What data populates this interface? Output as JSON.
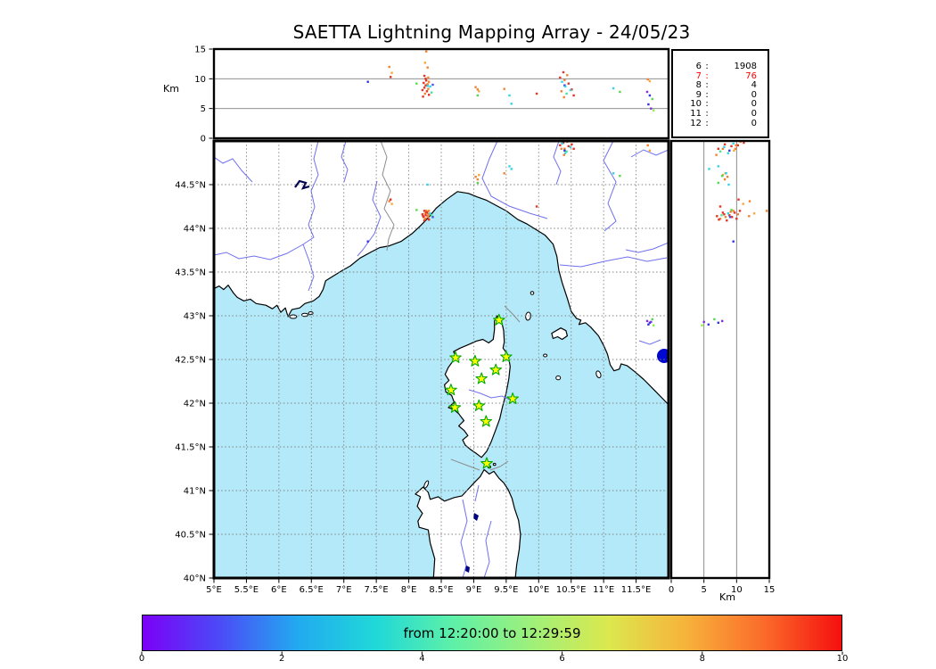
{
  "title": "SAETTA Lightning Mapping Array - 24/05/23",
  "stats_panel": {
    "separator": ":",
    "rows": [
      {
        "label": "6",
        "value": "1908",
        "highlight": false
      },
      {
        "label": "7",
        "value": "76",
        "highlight": true
      },
      {
        "label": "8",
        "value": "4",
        "highlight": false
      },
      {
        "label": "9",
        "value": "0",
        "highlight": false
      },
      {
        "label": "10",
        "value": "0",
        "highlight": false
      },
      {
        "label": "11",
        "value": "0",
        "highlight": false
      },
      {
        "label": "12",
        "value": "0",
        "highlight": false
      }
    ]
  },
  "axes": {
    "altitude": {
      "label": "Km",
      "range": [
        0,
        15
      ],
      "ticks": [
        {
          "v": 0,
          "label": "0"
        },
        {
          "v": 5,
          "label": "5"
        },
        {
          "v": 10,
          "label": "10"
        },
        {
          "v": 15,
          "label": "15"
        }
      ]
    },
    "longitude": {
      "range": [
        5,
        12
      ],
      "ticks": [
        {
          "v": 5,
          "label": "5°E"
        },
        {
          "v": 5.5,
          "label": "5.5°E"
        },
        {
          "v": 6,
          "label": "6°E"
        },
        {
          "v": 6.5,
          "label": "6.5°E"
        },
        {
          "v": 7,
          "label": "7°E"
        },
        {
          "v": 7.5,
          "label": "7.5°E"
        },
        {
          "v": 8,
          "label": "8°E"
        },
        {
          "v": 8.5,
          "label": "8.5°E"
        },
        {
          "v": 9,
          "label": "9°E"
        },
        {
          "v": 9.5,
          "label": "9.5°E"
        },
        {
          "v": 10,
          "label": "10°E"
        },
        {
          "v": 10.5,
          "label": "10.5°E"
        },
        {
          "v": 11,
          "label": "11°E"
        },
        {
          "v": 11.5,
          "label": "11.5°E"
        }
      ]
    },
    "latitude": {
      "range": [
        40,
        45
      ],
      "ticks": [
        {
          "v": 40,
          "label": "40°N"
        },
        {
          "v": 40.5,
          "label": "40.5°N"
        },
        {
          "v": 41,
          "label": "41°N"
        },
        {
          "v": 41.5,
          "label": "41.5°N"
        },
        {
          "v": 42,
          "label": "42°N"
        },
        {
          "v": 42.5,
          "label": "42.5°N"
        },
        {
          "v": 43,
          "label": "43°N"
        },
        {
          "v": 43.5,
          "label": "43.5°N"
        },
        {
          "v": 44,
          "label": "44°N"
        },
        {
          "v": 44.5,
          "label": "44.5°N"
        }
      ]
    }
  },
  "colorbar": {
    "label": "from 12:20:00 to 12:29:59",
    "range": [
      0,
      10
    ],
    "ticks": [
      {
        "v": 0,
        "label": "0"
      },
      {
        "v": 2,
        "label": "2"
      },
      {
        "v": 4,
        "label": "4"
      },
      {
        "v": 6,
        "label": "6"
      },
      {
        "v": 8,
        "label": "8"
      },
      {
        "v": 10,
        "label": "10"
      }
    ],
    "gradient": [
      "#7b00f7",
      "#4b4bf7",
      "#22aaf0",
      "#1fd8d8",
      "#5ef0a8",
      "#9ef07a",
      "#dce84e",
      "#f7b23b",
      "#fb6b2a",
      "#f50f0f"
    ]
  },
  "map_colors": {
    "sea": "#b3e9f8",
    "land": "#ffffff",
    "coast": "#000000",
    "river": "#7070f0",
    "border": "#8c8c8c",
    "grid": "#808080",
    "lake": "#0008cf",
    "star_fill": "#ffff00",
    "star_stroke": "#00a800"
  },
  "chart_data": {
    "type": "scatter",
    "title": "SAETTA Lightning Mapping Array - 24/05/23",
    "time_window": {
      "from": "12:20:00",
      "to": "12:29:59"
    },
    "panels": {
      "map": {
        "x_axis": "longitude_deg_E",
        "x_range": [
          5,
          12
        ],
        "y_axis": "latitude_deg_N",
        "y_range": [
          40,
          45
        ],
        "grid": true
      },
      "top": {
        "x_axis": "longitude_deg_E",
        "y_axis": "altitude_km",
        "y_range": [
          0,
          15
        ],
        "gridlines_km": [
          5,
          10
        ]
      },
      "right": {
        "x_axis": "altitude_km",
        "x_range": [
          0,
          15
        ],
        "y_axis": "latitude_deg_N",
        "gridlines_km": [
          5,
          10
        ]
      }
    },
    "colorbar_meaning": "time within window (0-10 min)",
    "source_counts_by_min_stations": [
      [
        "6",
        1908
      ],
      [
        "7",
        76
      ],
      [
        "8",
        4
      ],
      [
        "9",
        0
      ],
      [
        "10",
        0
      ],
      [
        "11",
        0
      ],
      [
        "12",
        0
      ]
    ],
    "stations_lon_lat": [
      [
        9.39,
        42.95
      ],
      [
        8.72,
        42.52
      ],
      [
        9.02,
        42.48
      ],
      [
        9.5,
        42.53
      ],
      [
        9.34,
        42.38
      ],
      [
        9.12,
        42.28
      ],
      [
        8.65,
        42.15
      ],
      [
        9.6,
        42.05
      ],
      [
        8.71,
        41.95
      ],
      [
        9.08,
        41.97
      ],
      [
        9.19,
        41.79
      ],
      [
        9.2,
        41.31
      ]
    ],
    "sources_lon_lat_km_color": [
      [
        8.27,
        44.2,
        14.6,
        "#f28130"
      ],
      [
        8.25,
        44.17,
        12.7,
        "#f5a839"
      ],
      [
        8.29,
        44.14,
        11.9,
        "#f28130"
      ],
      [
        8.24,
        44.2,
        10.5,
        "#e63323"
      ],
      [
        8.3,
        44.16,
        10.2,
        "#f28130"
      ],
      [
        8.26,
        44.11,
        10.0,
        "#e63323"
      ],
      [
        8.27,
        44.18,
        9.7,
        "#e63323"
      ],
      [
        8.31,
        44.2,
        9.5,
        "#f28130"
      ],
      [
        8.23,
        44.13,
        9.3,
        "#e63323"
      ],
      [
        8.29,
        44.19,
        9.1,
        "#f28130"
      ],
      [
        8.26,
        44.15,
        8.9,
        "#e63323"
      ],
      [
        8.33,
        44.17,
        8.7,
        "#30d4e6"
      ],
      [
        8.24,
        44.09,
        8.5,
        "#e63323"
      ],
      [
        8.3,
        44.13,
        8.3,
        "#f28130"
      ],
      [
        8.21,
        44.16,
        8.1,
        "#e63323"
      ],
      [
        8.28,
        44.18,
        7.9,
        "#e63323"
      ],
      [
        8.35,
        44.15,
        7.7,
        "#47e396"
      ],
      [
        8.25,
        44.11,
        7.5,
        "#f28130"
      ],
      [
        8.31,
        44.1,
        7.3,
        "#e63323"
      ],
      [
        8.22,
        44.14,
        7.0,
        "#e63323"
      ],
      [
        8.37,
        44.13,
        9.0,
        "#4056e3"
      ],
      [
        8.12,
        44.21,
        9.2,
        "#55d94f"
      ],
      [
        7.7,
        44.31,
        12.0,
        "#f28130"
      ],
      [
        7.74,
        44.28,
        11.0,
        "#f5a839"
      ],
      [
        7.72,
        44.33,
        10.3,
        "#e63323"
      ],
      [
        8.29,
        44.5,
        8.8,
        "#30d4e6"
      ],
      [
        10.38,
        44.98,
        11.1,
        "#e63323"
      ],
      [
        10.44,
        44.99,
        10.6,
        "#f28130"
      ],
      [
        10.33,
        44.95,
        10.2,
        "#e63323"
      ],
      [
        10.4,
        44.91,
        9.8,
        "#f28130"
      ],
      [
        10.36,
        44.97,
        9.5,
        "#30d4e6"
      ],
      [
        10.46,
        44.94,
        9.2,
        "#e63323"
      ],
      [
        10.4,
        44.89,
        8.9,
        "#3636dd"
      ],
      [
        10.41,
        44.86,
        8.7,
        "#30d4e6"
      ],
      [
        10.51,
        44.96,
        8.2,
        "#e63323"
      ],
      [
        10.35,
        44.91,
        7.9,
        "#f28130"
      ],
      [
        10.43,
        44.88,
        7.5,
        "#47e396"
      ],
      [
        10.54,
        44.91,
        7.2,
        "#e63323"
      ],
      [
        10.39,
        44.84,
        6.9,
        "#f28130"
      ],
      [
        10.49,
        44.93,
        8.1,
        "#30d4e6"
      ],
      [
        11.68,
        44.95,
        9.9,
        "#f28130"
      ],
      [
        11.71,
        44.89,
        9.6,
        "#f5a839"
      ],
      [
        9.03,
        44.59,
        8.6,
        "#f28130"
      ],
      [
        9.06,
        44.56,
        8.2,
        "#f28130"
      ],
      [
        9.08,
        44.61,
        7.9,
        "#f5a839"
      ],
      [
        9.06,
        44.52,
        7.2,
        "#55d94f"
      ],
      [
        9.55,
        44.71,
        7.2,
        "#30d4e6"
      ],
      [
        9.58,
        44.68,
        5.8,
        "#30d4e6"
      ],
      [
        9.47,
        44.63,
        8.3,
        "#f28130"
      ],
      [
        9.97,
        44.25,
        7.5,
        "#e63323"
      ],
      [
        7.37,
        43.85,
        9.5,
        "#3636dd"
      ],
      [
        11.15,
        44.63,
        8.4,
        "#30d4e6"
      ],
      [
        11.25,
        44.6,
        7.8,
        "#55d94f"
      ],
      [
        11.67,
        42.94,
        7.8,
        "#7e2fe3"
      ],
      [
        11.71,
        42.92,
        7.2,
        "#3636dd"
      ],
      [
        11.75,
        42.96,
        6.6,
        "#55d94f"
      ],
      [
        11.69,
        42.9,
        5.7,
        "#3636dd"
      ],
      [
        11.73,
        42.93,
        5.0,
        "#7e2fe3"
      ],
      [
        11.77,
        42.89,
        4.7,
        "#8df04d"
      ]
    ]
  }
}
